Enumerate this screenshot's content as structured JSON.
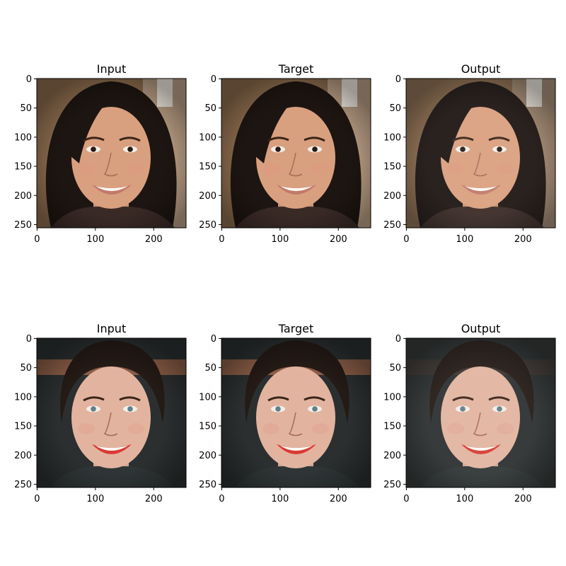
{
  "figure": {
    "rows": [
      {
        "panels": [
          {
            "title": "Input",
            "image": "face-portrait-woman-long-dark-hair-smiling"
          },
          {
            "title": "Target",
            "image": "face-portrait-woman-long-dark-hair-smiling"
          },
          {
            "title": "Output",
            "image": "face-portrait-woman-long-dark-hair-smiling-reconstructed"
          }
        ]
      },
      {
        "panels": [
          {
            "title": "Input",
            "image": "face-portrait-woman-hair-tied-back-red-lipstick"
          },
          {
            "title": "Target",
            "image": "face-portrait-woman-hair-tied-back-red-lipstick"
          },
          {
            "title": "Output",
            "image": "face-portrait-woman-hair-tied-back-red-lipstick-reconstructed"
          }
        ]
      }
    ],
    "axis": {
      "x_ticks": [
        0,
        100,
        200
      ],
      "y_ticks": [
        0,
        50,
        100,
        150,
        200,
        250
      ],
      "range": [
        0,
        256
      ]
    },
    "palettes": {
      "row1": {
        "bg": "#8a6a4c",
        "hair": "#1d1511",
        "skin": "#d9a07f",
        "lips": "#c27a6a",
        "cloth": "#3a2a26"
      },
      "row2": {
        "bg": "#2b2f2f",
        "hair": "#241a16",
        "skin": "#e2b4a0",
        "lips": "#d93a34",
        "cloth": "#2f3536"
      }
    }
  }
}
